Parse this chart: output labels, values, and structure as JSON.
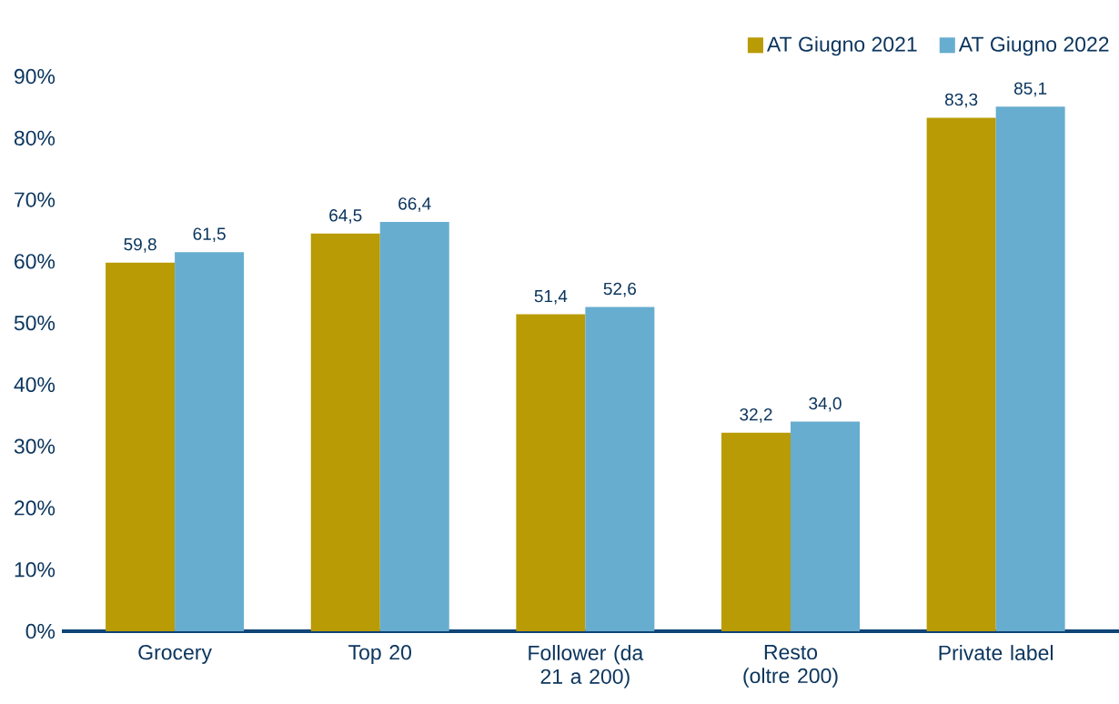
{
  "chart_data": {
    "type": "bar",
    "categories": [
      "Grocery",
      "Top 20",
      "Follower (da 21 a 200)",
      "Resto (oltre 200)",
      "Private label"
    ],
    "series": [
      {
        "name": "AT Giugno 2021",
        "color": "#b89b05",
        "values": [
          59.8,
          64.5,
          51.4,
          32.2,
          83.3
        ],
        "value_labels": [
          "59,8",
          "64,5",
          "51,4",
          "32,2",
          "83,3"
        ]
      },
      {
        "name": "AT Giugno 2022",
        "color": "#67adcf",
        "values": [
          61.5,
          66.4,
          52.6,
          34.0,
          85.1
        ],
        "value_labels": [
          "61,5",
          "66,4",
          "52,6",
          "34,0",
          "85,1"
        ]
      }
    ],
    "ylim": [
      0,
      90
    ],
    "yticks": [
      {
        "value": 0,
        "label": "0%"
      },
      {
        "value": 10,
        "label": "10%"
      },
      {
        "value": 20,
        "label": "20%"
      },
      {
        "value": 30,
        "label": "30%"
      },
      {
        "value": 40,
        "label": "40%"
      },
      {
        "value": 50,
        "label": "50%"
      },
      {
        "value": 60,
        "label": "60%"
      },
      {
        "value": 70,
        "label": "70%"
      },
      {
        "value": 80,
        "label": "80%"
      },
      {
        "value": 90,
        "label": "90%"
      }
    ],
    "legend": "top right",
    "grid": false
  }
}
